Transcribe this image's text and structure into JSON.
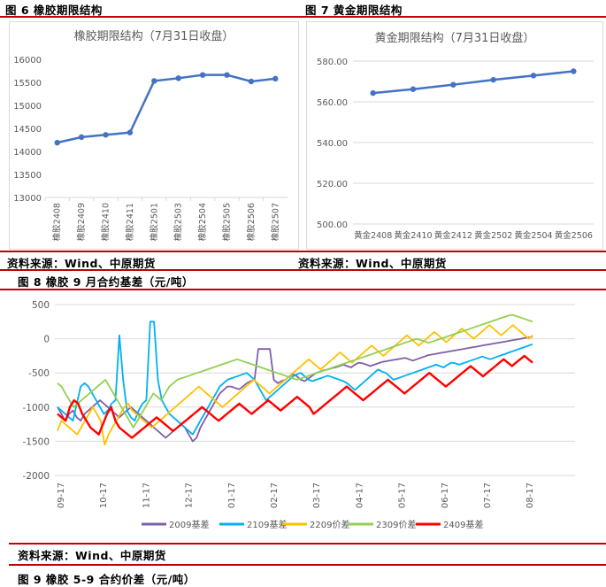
{
  "figures": {
    "fig6_caption": "图 6  橡胶期限结构",
    "fig7_caption": "图 7  黄金期限结构",
    "fig8_caption": "图 8  橡胶 9 月合约基差（元/吨）",
    "fig9_caption": "图 9  橡胶 5-9 合约价差（元/吨）"
  },
  "sources": {
    "left": "资料来源：Wind、中原期货",
    "right": "资料来源：Wind、中原期货",
    "fig8": "资料来源：Wind、中原期货"
  },
  "colors": {
    "rule": "#c0000b",
    "term_line": "#4472c4",
    "s2009": "#7f5fa7",
    "s2109": "#00b0f0",
    "s2209": "#ffc000",
    "s2309": "#92d050",
    "s2409": "#ff0000"
  },
  "chart_data": [
    {
      "type": "line",
      "title": "橡胶期限结构（7月31日收盘）",
      "categories": [
        "橡胶2408",
        "橡胶2409",
        "橡胶2410",
        "橡胶2411",
        "橡胶2501",
        "橡胶2503",
        "橡胶2504",
        "橡胶2505",
        "橡胶2506",
        "橡胶2507"
      ],
      "values": [
        14190,
        14310,
        14360,
        14410,
        15530,
        15590,
        15660,
        15660,
        15520,
        15580
      ],
      "ylim": [
        13000,
        16000
      ],
      "yticks": [
        13000,
        13500,
        14000,
        14500,
        15000,
        15500,
        16000
      ],
      "grid": false,
      "markers": true
    },
    {
      "type": "line",
      "title": "黄金期限结构（7月31日收盘）",
      "categories": [
        "黄金2408",
        "黄金2410",
        "黄金2412",
        "黄金2502",
        "黄金2504",
        "黄金2506"
      ],
      "values": [
        564.3,
        566.2,
        568.4,
        570.8,
        572.9,
        575.0
      ],
      "ylim": [
        500,
        580
      ],
      "yticks": [
        "500.00",
        "520.00",
        "540.00",
        "560.00",
        "580.00"
      ],
      "grid": true,
      "markers": true
    },
    {
      "type": "line",
      "title": "",
      "x_ticks": [
        "09-17",
        "10-17",
        "11-17",
        "12-17",
        "01-17",
        "02-17",
        "03-17",
        "04-17",
        "05-17",
        "06-17",
        "07-17",
        "08-17"
      ],
      "ylim": [
        -2000,
        500
      ],
      "yticks": [
        -2000,
        -1500,
        -1000,
        -500,
        0,
        500
      ],
      "grid": true,
      "legend_position": "bottom",
      "series": [
        {
          "name": "2009基差",
          "color_key": "s2009",
          "values": [
            -1000,
            -1100,
            -1200,
            -1100,
            -1050,
            -1150,
            -1200,
            -1100,
            -1050,
            -1000,
            -950,
            -900,
            -950,
            -1000,
            -1050,
            -1100,
            -1150,
            -1100,
            -1050,
            -1000,
            -1050,
            -1100,
            -1150,
            -1200,
            -1250,
            -1300,
            -1350,
            -1400,
            -1450,
            -1400,
            -1350,
            -1300,
            -1250,
            -1300,
            -1400,
            -1500,
            -1450,
            -1300,
            -1200,
            -1100,
            -1000,
            -900,
            -800,
            -750,
            -700,
            -700,
            -720,
            -740,
            -700,
            -650,
            -620,
            -600,
            -150,
            -150,
            -150,
            -150,
            -600,
            -650,
            -620,
            -600,
            -550,
            -520,
            -550,
            -600,
            -620,
            -580,
            -540,
            -500,
            -480,
            -460,
            -450,
            -430,
            -420,
            -400,
            -380,
            -400,
            -420,
            -380,
            -350,
            -360,
            -380,
            -400,
            -380,
            -360,
            -340,
            -330,
            -320,
            -310,
            -300,
            -290,
            -280,
            -300,
            -320,
            -300,
            -280,
            -260,
            -240,
            -230,
            -220,
            -210,
            -200,
            -190,
            -180,
            -170,
            -160,
            -150,
            -140,
            -130,
            -120,
            -110,
            -100,
            -90,
            -80,
            -70,
            -60,
            -50,
            -40,
            -30,
            -20,
            -10,
            0,
            10,
            20,
            30
          ]
        },
        {
          "name": "2109基差",
          "color_key": "s2109",
          "values": [
            -1000,
            -1050,
            -1100,
            -1150,
            -1200,
            -950,
            -700,
            -650,
            -700,
            -800,
            -900,
            -1000,
            -1100,
            -1050,
            -950,
            -900,
            50,
            -600,
            -1050,
            -1150,
            -1200,
            -1050,
            -950,
            -900,
            250,
            250,
            -600,
            -900,
            -1000,
            -1100,
            -1150,
            -1200,
            -1250,
            -1300,
            -1350,
            -1400,
            -1300,
            -1200,
            -1100,
            -1000,
            -900,
            -800,
            -700,
            -650,
            -600,
            -580,
            -560,
            -540,
            -520,
            -500,
            -550,
            -600,
            -700,
            -800,
            -900,
            -850,
            -800,
            -750,
            -700,
            -650,
            -600,
            -550,
            -520,
            -500,
            -550,
            -600,
            -620,
            -600,
            -580,
            -560,
            -540,
            -560,
            -580,
            -600,
            -620,
            -650,
            -700,
            -750,
            -700,
            -650,
            -600,
            -550,
            -500,
            -450,
            -480,
            -500,
            -550,
            -600,
            -580,
            -560,
            -540,
            -520,
            -500,
            -480,
            -460,
            -440,
            -420,
            -400,
            -380,
            -400,
            -420,
            -380,
            -350,
            -360,
            -380,
            -360,
            -340,
            -320,
            -300,
            -280,
            -260,
            -280,
            -300,
            -280,
            -260,
            -240,
            -220,
            -200,
            -180,
            -160,
            -140,
            -120,
            -100,
            -80
          ]
        },
        {
          "name": "2209价差",
          "color_key": "s2209",
          "values": [
            -1350,
            -1200,
            -1250,
            -1300,
            -1350,
            -1400,
            -1300,
            -1200,
            -1100,
            -1000,
            -1100,
            -1200,
            -1550,
            -1400,
            -1300,
            -1200,
            -1100,
            -1000,
            -950,
            -1050,
            -1100,
            -1150,
            -1200,
            -1250,
            -1300,
            -1250,
            -1200,
            -1150,
            -1100,
            -1050,
            -1000,
            -950,
            -900,
            -850,
            -800,
            -750,
            -700,
            -750,
            -800,
            -850,
            -900,
            -950,
            -1000,
            -950,
            -900,
            -850,
            -800,
            -750,
            -700,
            -650,
            -600,
            -650,
            -700,
            -750,
            -800,
            -750,
            -700,
            -650,
            -600,
            -550,
            -500,
            -450,
            -400,
            -350,
            -300,
            -350,
            -400,
            -450,
            -400,
            -350,
            -300,
            -250,
            -200,
            -250,
            -300,
            -350,
            -300,
            -250,
            -200,
            -150,
            -100,
            -150,
            -200,
            -250,
            -200,
            -150,
            -100,
            -50,
            0,
            50,
            0,
            -50,
            -100,
            -50,
            0,
            50,
            100,
            50,
            0,
            -50,
            0,
            50,
            100,
            150,
            100,
            50,
            0,
            50,
            100,
            150,
            200,
            150,
            100,
            50,
            100,
            150,
            200,
            150,
            100,
            50,
            0,
            50
          ]
        },
        {
          "name": "2309价差",
          "color_key": "s2309",
          "values": [
            -650,
            -700,
            -800,
            -900,
            -1000,
            -950,
            -900,
            -850,
            -800,
            -750,
            -700,
            -650,
            -600,
            -700,
            -800,
            -900,
            -1000,
            -1100,
            -1200,
            -1300,
            -1200,
            -1100,
            -1000,
            -900,
            -800,
            -850,
            -900,
            -800,
            -700,
            -650,
            -600,
            -580,
            -560,
            -540,
            -520,
            -500,
            -480,
            -460,
            -440,
            -420,
            -400,
            -380,
            -360,
            -340,
            -320,
            -300,
            -320,
            -340,
            -360,
            -380,
            -400,
            -420,
            -440,
            -460,
            -480,
            -500,
            -520,
            -540,
            -560,
            -580,
            -600,
            -580,
            -560,
            -540,
            -520,
            -500,
            -480,
            -460,
            -440,
            -420,
            -400,
            -380,
            -360,
            -340,
            -320,
            -300,
            -280,
            -260,
            -240,
            -220,
            -200,
            -180,
            -160,
            -140,
            -120,
            -100,
            -80,
            -60,
            -40,
            -20,
            0,
            -20,
            -40,
            -60,
            -40,
            -20,
            0,
            20,
            40,
            60,
            80,
            100,
            120,
            140,
            160,
            180,
            200,
            220,
            240,
            260,
            280,
            300,
            320,
            340,
            350,
            330,
            310,
            290,
            270,
            250
          ]
        },
        {
          "name": "2409基差",
          "color_key": "s2409",
          "values": [
            -1100,
            -1150,
            -1200,
            -1000,
            -900,
            -950,
            -1100,
            -1200,
            -1300,
            -1350,
            -1400,
            -1250,
            -1100,
            -1000,
            -1200,
            -1300,
            -1350,
            -1400,
            -1450,
            -1400,
            -1350,
            -1300,
            -1250,
            -1200,
            -1150,
            -1200,
            -1250,
            -1300,
            -1350,
            -1300,
            -1250,
            -1200,
            -1150,
            -1100,
            -1050,
            -1000,
            -1050,
            -1100,
            -1150,
            -1200,
            -1150,
            -1100,
            -1050,
            -1000,
            -950,
            -1000,
            -1050,
            -1100,
            -1050,
            -1000,
            -950,
            -900,
            -950,
            -1000,
            -1050,
            -1000,
            -950,
            -900,
            -850,
            -900,
            -950,
            -1000,
            -1100,
            -1050,
            -1000,
            -950,
            -900,
            -850,
            -800,
            -750,
            -700,
            -750,
            -800,
            -850,
            -900,
            -850,
            -800,
            -750,
            -700,
            -650,
            -600,
            -650,
            -700,
            -750,
            -800,
            -750,
            -700,
            -650,
            -600,
            -550,
            -500,
            -550,
            -600,
            -650,
            -700,
            -650,
            -600,
            -550,
            -500,
            -450,
            -400,
            -450,
            -500,
            -550,
            -500,
            -450,
            -400,
            -350,
            -300,
            -350,
            -400,
            -350,
            -300,
            -250,
            -300,
            -350
          ]
        }
      ]
    }
  ]
}
